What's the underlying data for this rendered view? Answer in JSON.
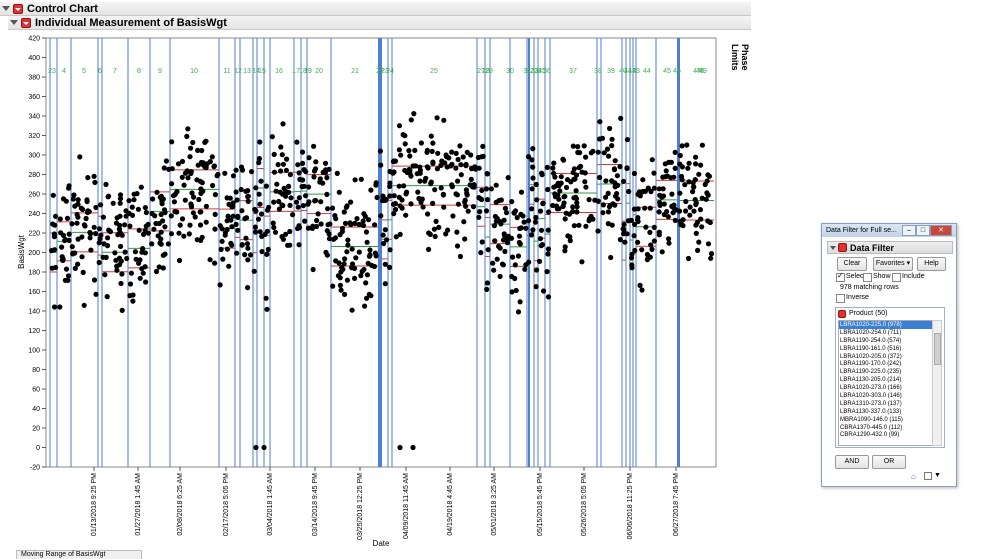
{
  "report": {
    "outer_title": "Control Chart",
    "inner_title": "Individual Measurement of BasisWgt",
    "phase_limits_label": "Phase Limits",
    "bottom_tab": "Moving Range of BasisWgt"
  },
  "chart_data": {
    "type": "scatter",
    "xlabel": "Date",
    "ylabel": "BasisWgt",
    "ylim": [
      -20,
      420
    ],
    "y_ticks": [
      -20,
      0,
      20,
      40,
      60,
      80,
      100,
      120,
      140,
      160,
      180,
      200,
      220,
      240,
      260,
      280,
      300,
      320,
      340,
      360,
      380,
      400,
      420
    ],
    "x_tick_labels": [
      "01/13/2018 9:25 PM",
      "01/27/2018 1:45 AM",
      "02/08/2018 6:25 AM",
      "02/17/2018 5:05 PM",
      "03/04/2018 1:45 AM",
      "03/14/2018 9:45 PM",
      "03/25/2018 12:25 PM",
      "04/09/2018 11:45 AM",
      "04/19/2018 4:45 AM",
      "05/01/2018 3:25 AM",
      "05/15/2018 5:45 PM",
      "05/26/2018 5:05 PM",
      "06/06/2018 11:25 PM",
      "06/27/2018 7:45 PM"
    ],
    "phase_labels": [
      "23",
      "4",
      "5",
      "6",
      "7",
      "8",
      "9",
      "10",
      "11",
      "12",
      "13",
      "14",
      "15",
      "16",
      "17",
      "18",
      "19",
      "20",
      "21",
      "22",
      "23",
      "24",
      "25",
      "27",
      "28",
      "29",
      "30",
      "31",
      "32",
      "33",
      "34",
      "35",
      "36",
      "37",
      "38",
      "39",
      "40",
      "41",
      "42",
      "43",
      "44",
      "45",
      "46",
      "47",
      "48",
      "49"
    ],
    "grid": false,
    "point_color": "#000000",
    "phase_line_color": "#4f7fcf",
    "limit_line_color": "#d23a3a",
    "center_line_color": "#2e9a3e",
    "phase_label_color": "#3fae4f",
    "annotated_points": [
      {
        "x_phase": "15",
        "y": 0
      },
      {
        "x_phase": "15",
        "y": 0
      },
      {
        "x_phase": "27",
        "y": 0
      },
      {
        "x_phase": "27",
        "y": 0
      }
    ]
  },
  "data_filter": {
    "window_title": "Data Filter for Full se...",
    "section_title": "Data Filter",
    "clear_label": "Clear",
    "favorites_label": "Favorites ▾",
    "help_label": "Help",
    "select_label": "Select",
    "show_label": "Show",
    "include_label": "Include",
    "matching_rows": "978 matching rows",
    "inverse_label": "Inverse",
    "product_header": "Product (50)",
    "products": [
      "LBRA1020-225.0 (978)",
      "LBRA1020-254.0 (711)",
      "LBRA1190-254.0 (574)",
      "LBRA1190-161.0 (516)",
      "LBRA1020-205.0 (372)",
      "LBRA1190-170.0 (242)",
      "LBRA1190-225.0 (235)",
      "LBRA1130-205.0 (214)",
      "LBRA1020-273.0 (166)",
      "LBRA1020-303.0 (146)",
      "LBRA1310-273.0 (137)",
      "LBRA1130-337.0 (133)",
      "MBRA1090-146.0 (115)",
      "CBRA1370-445.0 (112)",
      "CBRA1290-432.0 (99)"
    ],
    "and_label": "AND",
    "or_label": "OR"
  }
}
